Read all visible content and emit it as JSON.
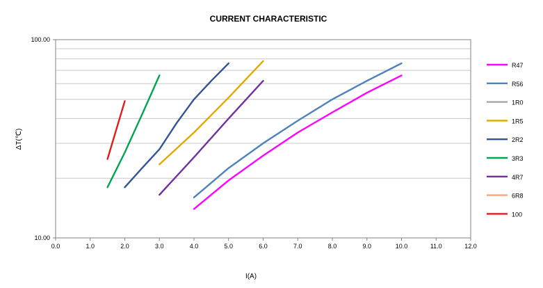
{
  "chart_data": {
    "type": "line",
    "title": "CURRENT CHARACTERISTIC",
    "xlabel": "I(A)",
    "ylabel": "ΔT(℃)",
    "xlim": [
      0,
      12
    ],
    "ylim": [
      10,
      100
    ],
    "yscale": "log",
    "x_ticks": [
      "0.0",
      "1.0",
      "2.0",
      "3.0",
      "4.0",
      "5.0",
      "6.0",
      "7.0",
      "8.0",
      "9.0",
      "10.0",
      "11.0",
      "12.0"
    ],
    "y_ticks": [
      "10.00",
      "100.00"
    ],
    "grid": "horizontal",
    "legend_position": "right",
    "series": [
      {
        "name": "R47",
        "color": "#ff00ff",
        "x": [
          4.0,
          5.0,
          6.0,
          7.0,
          8.0,
          9.0,
          10.0
        ],
        "y": [
          14.0,
          19.5,
          26.0,
          34.0,
          43.0,
          54.0,
          66.0
        ]
      },
      {
        "name": "R56",
        "color": "#4f81bd",
        "x": [
          4.0,
          5.0,
          6.0,
          7.0,
          8.0,
          9.0,
          10.0
        ],
        "y": [
          16.0,
          22.5,
          30.0,
          39.0,
          50.0,
          62.0,
          76.0
        ]
      },
      {
        "name": "1R0",
        "color": "#a6a6a6",
        "x": [],
        "y": []
      },
      {
        "name": "1R5",
        "color": "#e0a800",
        "x": [
          3.0,
          4.0,
          5.0,
          6.0
        ],
        "y": [
          23.5,
          34.0,
          51.0,
          78.0
        ]
      },
      {
        "name": "2R2",
        "color": "#2f5597",
        "x": [
          2.0,
          2.5,
          3.0,
          3.5,
          4.0,
          4.5,
          5.0
        ],
        "y": [
          18.0,
          22.5,
          28.0,
          38.0,
          50.0,
          62.0,
          76.0
        ]
      },
      {
        "name": "3R3",
        "color": "#00a550",
        "x": [
          1.5,
          2.0,
          2.5,
          3.0
        ],
        "y": [
          18.0,
          27.0,
          42.0,
          66.0
        ]
      },
      {
        "name": "4R7",
        "color": "#7030a0",
        "x": [
          3.0,
          4.0,
          5.0,
          6.0
        ],
        "y": [
          16.5,
          25.5,
          40.0,
          62.0
        ]
      },
      {
        "name": "6R8",
        "color": "#f4a582",
        "x": [],
        "y": []
      },
      {
        "name": "100",
        "color": "#e31a1c",
        "x": [
          1.5,
          2.0
        ],
        "y": [
          25.0,
          49.0
        ]
      }
    ]
  }
}
